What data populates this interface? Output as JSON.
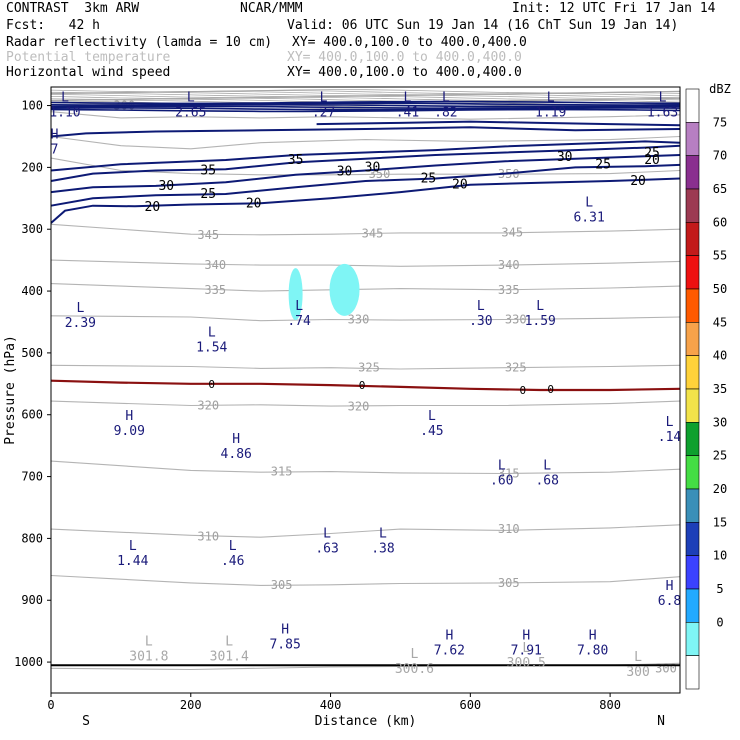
{
  "header": {
    "model": "CONTRAST  3km ARW",
    "org": "NCAR/MMM",
    "init": "Init: 12 UTC Fri 17 Jan 14",
    "fcst": "Fcst:   42 h",
    "valid": "Valid: 06 UTC Sun 19 Jan 14 (16 ChT Sun 19 Jan 14)",
    "fields": [
      {
        "name": "Radar reflectivity (lamda = 10 cm)",
        "xy": "XY= 400.0,100.0 to 400.0,400.0",
        "color": "#000000"
      },
      {
        "name": "Potential temperature",
        "xy": "XY= 400.0,100.0 to 400.0,400.0",
        "color": "#bdbdbd"
      },
      {
        "name": "Horizontal wind speed",
        "xy": "XY= 400.0,100.0 to 400.0,400.0",
        "color": "#000080"
      }
    ]
  },
  "chart_data": {
    "type": "contour-cross-section",
    "xlabel": "Distance (km)",
    "ylabel": "Pressure (hPa)",
    "xlim": [
      0,
      900
    ],
    "ylim": [
      1050,
      70
    ],
    "x_ticks": [
      0,
      200,
      400,
      600,
      800
    ],
    "y_ticks": [
      100,
      200,
      300,
      400,
      500,
      600,
      700,
      800,
      900,
      1000
    ],
    "x_end_labels": {
      "left": "S",
      "right": "N"
    },
    "theta_contours": [
      {
        "value": 300,
        "label_positions": [
          [
            105,
            100
          ],
          [
            880,
            1010
          ]
        ]
      },
      {
        "value": 305,
        "label_positions": [
          [
            330,
            875
          ],
          [
            655,
            872
          ]
        ]
      },
      {
        "value": 310,
        "label_positions": [
          [
            225,
            797
          ],
          [
            655,
            785
          ]
        ]
      },
      {
        "value": 315,
        "label_positions": [
          [
            330,
            692
          ],
          [
            655,
            695
          ]
        ]
      },
      {
        "value": 320,
        "label_positions": [
          [
            225,
            585
          ],
          [
            440,
            587
          ]
        ]
      },
      {
        "value": 325,
        "label_positions": [
          [
            455,
            524
          ],
          [
            665,
            524
          ]
        ]
      },
      {
        "value": 330,
        "label_positions": [
          [
            440,
            446
          ],
          [
            665,
            446
          ]
        ]
      },
      {
        "value": 335,
        "label_positions": [
          [
            235,
            398
          ],
          [
            655,
            398
          ]
        ]
      },
      {
        "value": 340,
        "label_positions": [
          [
            235,
            358
          ],
          [
            655,
            358
          ]
        ]
      },
      {
        "value": 345,
        "label_positions": [
          [
            225,
            309
          ],
          [
            460,
            307
          ],
          [
            660,
            305
          ]
        ]
      },
      {
        "value": 350,
        "label_positions": [
          [
            470,
            211
          ],
          [
            655,
            211
          ]
        ]
      }
    ],
    "wind_contours": [
      {
        "value": 20,
        "label_positions": [
          [
            145,
            264
          ],
          [
            290,
            258
          ],
          [
            585,
            228
          ],
          [
            840,
            222
          ]
        ]
      },
      {
        "value": 25,
        "label_positions": [
          [
            225,
            243
          ],
          [
            540,
            218
          ],
          [
            790,
            195
          ]
        ]
      },
      {
        "value": 30,
        "label_positions": [
          [
            165,
            230
          ],
          [
            420,
            207
          ],
          [
            460,
            200
          ]
        ]
      },
      {
        "value": 35,
        "label_positions": [
          [
            225,
            205
          ],
          [
            350,
            188
          ]
        ]
      },
      {
        "value": 30,
        "label_positions": [
          [
            735,
            183
          ]
        ]
      },
      {
        "value": 25,
        "label_positions": [
          [
            860,
            177
          ]
        ]
      },
      {
        "value": 20,
        "label_positions": [
          [
            860,
            188
          ]
        ]
      }
    ],
    "zero_line_label": "0",
    "extrema": [
      {
        "kind": "L",
        "value": "1.10",
        "x": 20,
        "p": 100,
        "color": "navy"
      },
      {
        "kind": "L",
        "value": "2.65",
        "x": 200,
        "p": 100,
        "color": "navy"
      },
      {
        "kind": "L",
        "value": ".27",
        "x": 390,
        "p": 100,
        "color": "navy"
      },
      {
        "kind": "L",
        "value": ".41",
        "x": 510,
        "p": 100,
        "color": "navy"
      },
      {
        "kind": "L",
        "value": ".82",
        "x": 565,
        "p": 100,
        "color": "navy"
      },
      {
        "kind": "L",
        "value": "1.19",
        "x": 715,
        "p": 100,
        "color": "navy"
      },
      {
        "kind": "L",
        "value": "1.63",
        "x": 875,
        "p": 100,
        "color": "navy"
      },
      {
        "kind": "H",
        "value": "7",
        "x": 5,
        "p": 160,
        "color": "navy"
      },
      {
        "kind": "L",
        "value": "6.31",
        "x": 770,
        "p": 270,
        "color": "navy"
      },
      {
        "kind": "L",
        "value": "2.39",
        "x": 42,
        "p": 440,
        "color": "navy"
      },
      {
        "kind": "L",
        "value": "1.54",
        "x": 230,
        "p": 480,
        "color": "navy"
      },
      {
        "kind": "L",
        "value": ".74",
        "x": 355,
        "p": 437,
        "color": "navy"
      },
      {
        "kind": "L",
        "value": ".30",
        "x": 615,
        "p": 437,
        "color": "navy"
      },
      {
        "kind": "L",
        "value": "1.59",
        "x": 700,
        "p": 437,
        "color": "navy"
      },
      {
        "kind": "H",
        "value": "9.09",
        "x": 112,
        "p": 615,
        "color": "navy"
      },
      {
        "kind": "H",
        "value": "4.86",
        "x": 265,
        "p": 652,
        "color": "navy"
      },
      {
        "kind": "L",
        "value": ".45",
        "x": 545,
        "p": 615,
        "color": "navy"
      },
      {
        "kind": "L",
        "value": ".14",
        "x": 885,
        "p": 625,
        "color": "navy"
      },
      {
        "kind": "L",
        "value": ".60",
        "x": 645,
        "p": 695,
        "color": "navy"
      },
      {
        "kind": "L",
        "value": ".68",
        "x": 710,
        "p": 695,
        "color": "navy"
      },
      {
        "kind": "L",
        "value": ".63",
        "x": 395,
        "p": 805,
        "color": "navy"
      },
      {
        "kind": "L",
        "value": ".38",
        "x": 475,
        "p": 805,
        "color": "navy"
      },
      {
        "kind": "L",
        "value": "1.44",
        "x": 117,
        "p": 825,
        "color": "navy"
      },
      {
        "kind": "L",
        "value": ".46",
        "x": 260,
        "p": 825,
        "color": "navy"
      },
      {
        "kind": "H",
        "value": "6.8",
        "x": 885,
        "p": 890,
        "color": "navy"
      },
      {
        "kind": "H",
        "value": "7.85",
        "x": 335,
        "p": 960,
        "color": "navy"
      },
      {
        "kind": "H",
        "value": "7.62",
        "x": 570,
        "p": 970,
        "color": "navy"
      },
      {
        "kind": "H",
        "value": "7.91",
        "x": 680,
        "p": 970,
        "color": "navy"
      },
      {
        "kind": "H",
        "value": "7.80",
        "x": 775,
        "p": 970,
        "color": "navy"
      },
      {
        "kind": "L",
        "value": "301.8",
        "x": 140,
        "p": 980,
        "color": "grey"
      },
      {
        "kind": "L",
        "value": "301.4",
        "x": 255,
        "p": 980,
        "color": "grey"
      },
      {
        "kind": "L",
        "value": "300.6",
        "x": 520,
        "p": 1000,
        "color": "grey"
      },
      {
        "kind": "L",
        "value": "300.5",
        "x": 680,
        "p": 990,
        "color": "grey"
      },
      {
        "kind": "L",
        "value": "300",
        "x": 840,
        "p": 1005,
        "color": "grey"
      }
    ],
    "reflectivity_cells": [
      {
        "x_center": 350,
        "p_center": 405,
        "dbz": 5
      },
      {
        "x_center": 420,
        "p_center": 398,
        "dbz": 5
      }
    ],
    "colorbar": {
      "title": "dBZ",
      "levels": [
        "75",
        "70",
        "65",
        "60",
        "55",
        "50",
        "45",
        "40",
        "35",
        "30",
        "25",
        "20",
        "15",
        "10",
        "5",
        "0"
      ],
      "colors": [
        "#ffffff",
        "#b77fc2",
        "#8a2f8f",
        "#9c3a52",
        "#c21a1a",
        "#ee1111",
        "#ff5a00",
        "#f7a24a",
        "#ffd23a",
        "#f2e34a",
        "#0ea02e",
        "#44dd44",
        "#3a8fb8",
        "#1d3fb8",
        "#3b42ff",
        "#23aaff",
        "#7ff5f5",
        "#ffffff"
      ]
    }
  }
}
